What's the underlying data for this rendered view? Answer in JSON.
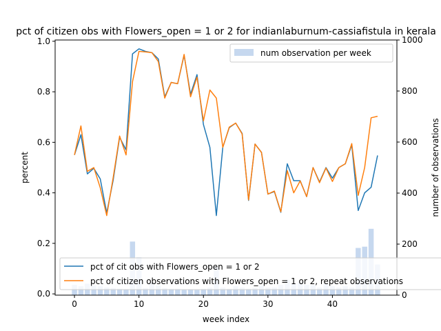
{
  "chart_data": {
    "type": "line",
    "title": "pct of citizen obs with Flowers_open = 1 or 2 for indianlaburnum-cassiafistula in kerala",
    "xlabel": "week index",
    "ylabel": "percent",
    "y2label": "number of observations",
    "xlim": [
      -3,
      50
    ],
    "ylim": [
      -0.005,
      1.005
    ],
    "y2lim": [
      0,
      1000
    ],
    "xticks": [
      0,
      10,
      20,
      30,
      40
    ],
    "yticks": [
      0.0,
      0.2,
      0.4,
      0.6,
      0.8,
      1.0
    ],
    "y2ticks": [
      0,
      200,
      400,
      600,
      800,
      1000
    ],
    "xtick_labels": [
      "0",
      "10",
      "20",
      "30",
      "40"
    ],
    "ytick_labels": [
      "0.0",
      "0.2",
      "0.4",
      "0.6",
      "0.8",
      "1.0"
    ],
    "y2tick_labels": [
      "0",
      "200",
      "400",
      "600",
      "800",
      "1000"
    ],
    "x": [
      0,
      1,
      2,
      3,
      4,
      5,
      6,
      7,
      8,
      9,
      10,
      11,
      12,
      13,
      14,
      15,
      16,
      17,
      18,
      19,
      20,
      21,
      22,
      23,
      24,
      25,
      26,
      27,
      28,
      29,
      30,
      31,
      32,
      33,
      34,
      35,
      36,
      37,
      38,
      39,
      40,
      41,
      42,
      43,
      44,
      45,
      46,
      47
    ],
    "series": [
      {
        "name": "pct of cit obs with Flowers_open = 1 or 2",
        "color": "#1f77b4",
        "axis": "left",
        "values": [
          0.55,
          0.63,
          0.475,
          0.497,
          0.455,
          0.32,
          0.45,
          0.62,
          0.57,
          0.95,
          0.97,
          0.96,
          0.955,
          0.93,
          0.78,
          0.837,
          0.832,
          0.945,
          0.79,
          0.868,
          0.67,
          0.58,
          0.31,
          0.58,
          0.658,
          0.676,
          0.635,
          0.37,
          0.593,
          0.56,
          0.395,
          0.405,
          0.323,
          0.515,
          0.448,
          0.448,
          0.385,
          0.5,
          0.443,
          0.5,
          0.458,
          0.5,
          0.515,
          0.59,
          0.33,
          0.4,
          0.422,
          0.548
        ]
      },
      {
        "name": "pct of citizen observations with Flowers_open = 1 or 2, repeat observations",
        "color": "#ff7f0e",
        "axis": "left",
        "values": [
          0.55,
          0.665,
          0.485,
          0.5,
          0.42,
          0.31,
          0.46,
          0.625,
          0.55,
          0.84,
          0.96,
          0.958,
          0.955,
          0.92,
          0.775,
          0.837,
          0.832,
          0.948,
          0.78,
          0.858,
          0.685,
          0.807,
          0.775,
          0.58,
          0.66,
          0.676,
          0.633,
          0.372,
          0.593,
          0.56,
          0.395,
          0.407,
          0.325,
          0.488,
          0.4,
          0.447,
          0.385,
          0.5,
          0.44,
          0.498,
          0.445,
          0.5,
          0.515,
          0.595,
          0.39,
          0.5,
          0.697,
          0.703
        ]
      },
      {
        "name": "num observation per week",
        "type": "bar",
        "color": "#aec7e8",
        "axis": "right",
        "values": [
          40,
          35,
          45,
          38,
          35,
          30,
          28,
          25,
          22,
          210,
          148,
          28,
          50,
          38,
          28,
          25,
          25,
          20,
          22,
          20,
          25,
          30,
          110,
          30,
          25,
          35,
          30,
          25,
          30,
          38,
          30,
          30,
          40,
          60,
          45,
          50,
          40,
          40,
          30,
          45,
          35,
          30,
          35,
          30,
          185,
          190,
          260,
          120
        ]
      }
    ],
    "legend_right": "top-right",
    "legend_lines": "lower-left",
    "grid": false
  }
}
